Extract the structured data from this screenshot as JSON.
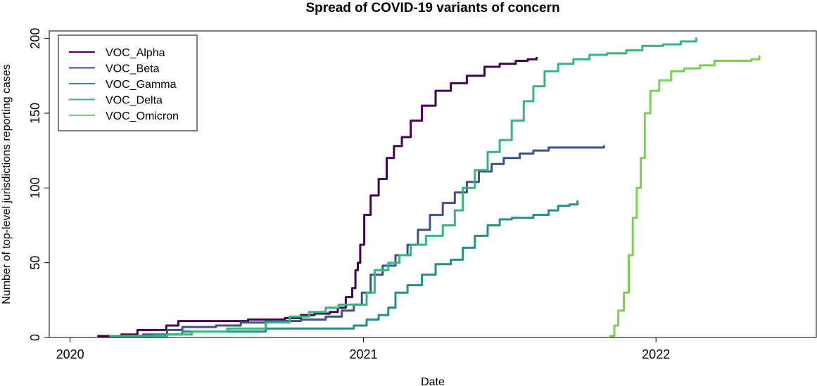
{
  "chart_data": {
    "type": "line",
    "title": "Spread of COVID-19 variants of concern",
    "xlabel": "Date",
    "ylabel": "Number of top-level jurisdictions reporting cases",
    "xlim": [
      "2019-12-06",
      "2022-07-20"
    ],
    "ylim": [
      0,
      205
    ],
    "x_ticks": [
      "2020",
      "2021",
      "2022"
    ],
    "x_tick_dates": [
      "2020-01-01",
      "2021-01-01",
      "2022-01-01"
    ],
    "y_ticks": [
      0,
      50,
      100,
      150,
      200
    ],
    "grid": false,
    "legend_position": "top-left",
    "series": [
      {
        "name": "VOC_Alpha",
        "color": "#440154",
        "points": [
          [
            "2020-02-05",
            1
          ],
          [
            "2020-02-20",
            1
          ],
          [
            "2020-03-05",
            2
          ],
          [
            "2020-03-25",
            5
          ],
          [
            "2020-04-10",
            5
          ],
          [
            "2020-04-30",
            8
          ],
          [
            "2020-05-15",
            11
          ],
          [
            "2020-06-10",
            11
          ],
          [
            "2020-07-15",
            11
          ],
          [
            "2020-08-10",
            12
          ],
          [
            "2020-09-05",
            12
          ],
          [
            "2020-09-25",
            13
          ],
          [
            "2020-10-15",
            15
          ],
          [
            "2020-11-01",
            16
          ],
          [
            "2020-11-20",
            17
          ],
          [
            "2020-11-30",
            20
          ],
          [
            "2020-12-10",
            27
          ],
          [
            "2020-12-18",
            33
          ],
          [
            "2020-12-22",
            45
          ],
          [
            "2020-12-25",
            50
          ],
          [
            "2020-12-28",
            62
          ],
          [
            "2021-01-02",
            82
          ],
          [
            "2021-01-10",
            95
          ],
          [
            "2021-01-20",
            106
          ],
          [
            "2021-01-30",
            120
          ],
          [
            "2021-02-08",
            128
          ],
          [
            "2021-02-18",
            134
          ],
          [
            "2021-03-01",
            145
          ],
          [
            "2021-03-15",
            155
          ],
          [
            "2021-04-01",
            165
          ],
          [
            "2021-04-20",
            170
          ],
          [
            "2021-05-10",
            175
          ],
          [
            "2021-06-01",
            181
          ],
          [
            "2021-06-20",
            183
          ],
          [
            "2021-07-10",
            185
          ],
          [
            "2021-07-25",
            186
          ],
          [
            "2021-08-05",
            187
          ]
        ]
      },
      {
        "name": "VOC_Beta",
        "color": "#3b528b",
        "points": [
          [
            "2020-02-20",
            1
          ],
          [
            "2020-04-01",
            2
          ],
          [
            "2020-05-01",
            5
          ],
          [
            "2020-05-20",
            7
          ],
          [
            "2020-07-01",
            8
          ],
          [
            "2020-08-01",
            10
          ],
          [
            "2020-09-01",
            11
          ],
          [
            "2020-10-15",
            12
          ],
          [
            "2020-11-15",
            14
          ],
          [
            "2020-12-05",
            18
          ],
          [
            "2020-12-20",
            22
          ],
          [
            "2020-12-30",
            30
          ],
          [
            "2021-01-10",
            42
          ],
          [
            "2021-01-25",
            48
          ],
          [
            "2021-02-10",
            55
          ],
          [
            "2021-02-25",
            62
          ],
          [
            "2021-03-10",
            72
          ],
          [
            "2021-03-25",
            82
          ],
          [
            "2021-04-10",
            90
          ],
          [
            "2021-04-25",
            97
          ],
          [
            "2021-05-10",
            104
          ],
          [
            "2021-05-25",
            111
          ],
          [
            "2021-06-10",
            116
          ],
          [
            "2021-06-25",
            120
          ],
          [
            "2021-07-15",
            123
          ],
          [
            "2021-08-01",
            125
          ],
          [
            "2021-08-20",
            127
          ],
          [
            "2021-09-30",
            127
          ],
          [
            "2021-10-25",
            127
          ],
          [
            "2021-10-28",
            128
          ]
        ]
      },
      {
        "name": "VOC_Gamma",
        "color": "#21908c",
        "points": [
          [
            "2020-02-25",
            1
          ],
          [
            "2020-04-15",
            2
          ],
          [
            "2020-05-20",
            4
          ],
          [
            "2020-07-01",
            4
          ],
          [
            "2020-08-15",
            4
          ],
          [
            "2020-09-01",
            6
          ],
          [
            "2020-10-15",
            6
          ],
          [
            "2020-11-20",
            6
          ],
          [
            "2020-12-10",
            6
          ],
          [
            "2020-12-20",
            8
          ],
          [
            "2021-01-05",
            12
          ],
          [
            "2021-01-20",
            15
          ],
          [
            "2021-02-01",
            20
          ],
          [
            "2021-02-10",
            30
          ],
          [
            "2021-02-25",
            35
          ],
          [
            "2021-03-15",
            42
          ],
          [
            "2021-04-01",
            49
          ],
          [
            "2021-04-20",
            52
          ],
          [
            "2021-05-05",
            60
          ],
          [
            "2021-05-20",
            68
          ],
          [
            "2021-06-05",
            75
          ],
          [
            "2021-06-20",
            79
          ],
          [
            "2021-07-05",
            80
          ],
          [
            "2021-08-01",
            82
          ],
          [
            "2021-08-20",
            85
          ],
          [
            "2021-09-01",
            88
          ],
          [
            "2021-09-15",
            89
          ],
          [
            "2021-09-25",
            91
          ]
        ]
      },
      {
        "name": "VOC_Delta",
        "color": "#35b779",
        "points": [
          [
            "2020-02-20",
            1
          ],
          [
            "2020-05-01",
            2
          ],
          [
            "2020-06-01",
            4
          ],
          [
            "2020-07-15",
            6
          ],
          [
            "2020-09-01",
            10
          ],
          [
            "2020-10-01",
            14
          ],
          [
            "2020-10-25",
            17
          ],
          [
            "2020-11-15",
            20
          ],
          [
            "2020-12-01",
            22
          ],
          [
            "2020-12-30",
            22
          ],
          [
            "2021-01-05",
            30
          ],
          [
            "2021-01-15",
            45
          ],
          [
            "2021-02-01",
            50
          ],
          [
            "2021-02-15",
            55
          ],
          [
            "2021-03-01",
            62
          ],
          [
            "2021-03-20",
            68
          ],
          [
            "2021-04-10",
            75
          ],
          [
            "2021-04-25",
            85
          ],
          [
            "2021-05-05",
            100
          ],
          [
            "2021-05-20",
            112
          ],
          [
            "2021-06-05",
            124
          ],
          [
            "2021-06-20",
            132
          ],
          [
            "2021-07-05",
            145
          ],
          [
            "2021-07-20",
            158
          ],
          [
            "2021-08-01",
            168
          ],
          [
            "2021-08-15",
            178
          ],
          [
            "2021-09-01",
            183
          ],
          [
            "2021-09-20",
            186
          ],
          [
            "2021-10-10",
            189
          ],
          [
            "2021-11-01",
            190
          ],
          [
            "2021-11-25",
            192
          ],
          [
            "2021-12-15",
            195
          ],
          [
            "2022-01-10",
            196
          ],
          [
            "2022-02-01",
            198
          ],
          [
            "2022-02-20",
            200
          ]
        ]
      },
      {
        "name": "VOC_Omicron",
        "color": "#7ad151",
        "points": [
          [
            "2021-11-05",
            1
          ],
          [
            "2021-11-10",
            8
          ],
          [
            "2021-11-15",
            18
          ],
          [
            "2021-11-22",
            30
          ],
          [
            "2021-11-28",
            55
          ],
          [
            "2021-12-03",
            80
          ],
          [
            "2021-12-08",
            100
          ],
          [
            "2021-12-13",
            120
          ],
          [
            "2021-12-18",
            150
          ],
          [
            "2021-12-25",
            165
          ],
          [
            "2022-01-05",
            172
          ],
          [
            "2022-01-20",
            178
          ],
          [
            "2022-02-05",
            180
          ],
          [
            "2022-02-25",
            182
          ],
          [
            "2022-03-15",
            185
          ],
          [
            "2022-04-10",
            185
          ],
          [
            "2022-04-30",
            186
          ],
          [
            "2022-05-10",
            188
          ]
        ]
      }
    ]
  }
}
